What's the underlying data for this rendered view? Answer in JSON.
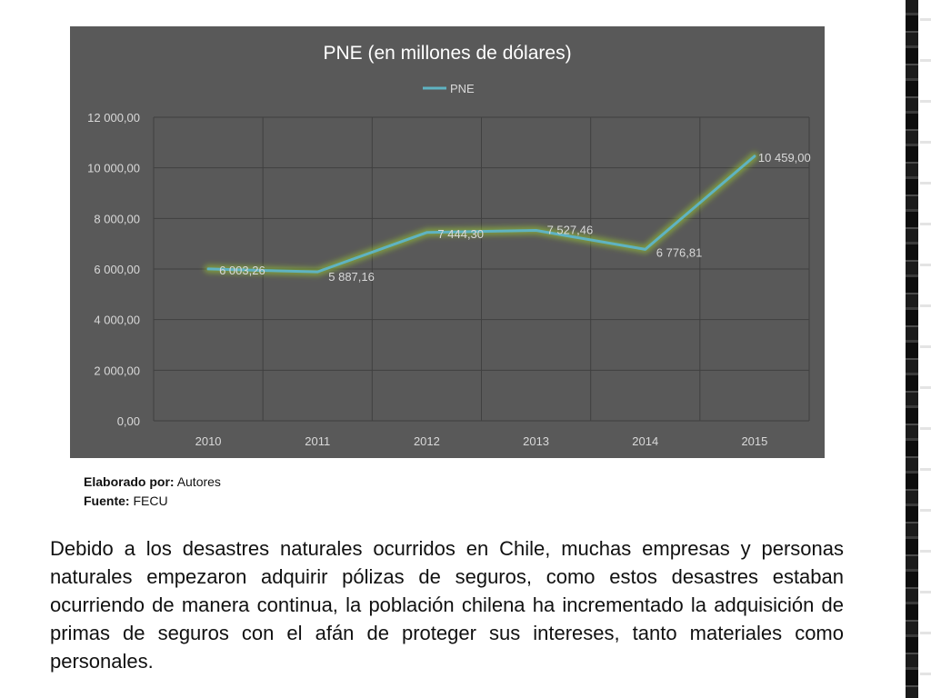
{
  "chart_data": {
    "type": "line",
    "title": "PNE (en millones de dólares)",
    "legend": {
      "position": "top",
      "entries": [
        "PNE"
      ]
    },
    "categories": [
      "2010",
      "2011",
      "2012",
      "2013",
      "2014",
      "2015"
    ],
    "series": [
      {
        "name": "PNE",
        "values": [
          6003.26,
          5887.16,
          7444.3,
          7527.46,
          6776.81,
          10459.0
        ],
        "labels": [
          "6 003,26",
          "5 887,16",
          "7 444,30",
          "7 527,46",
          "6 776,81",
          "10 459,00"
        ]
      }
    ],
    "yticks": [
      0,
      2000,
      4000,
      6000,
      8000,
      10000,
      12000
    ],
    "ytick_labels": [
      "0,00",
      "2 000,00",
      "4 000,00",
      "6 000,00",
      "8 000,00",
      "10 000,00",
      "12 000,00"
    ],
    "ylim": [
      0,
      12000
    ],
    "grid": true,
    "colors": {
      "background": "#595959",
      "line": "#5fb3c2",
      "glow": "#9acd32",
      "grid": "#404040",
      "text": "#d9d9d9"
    }
  },
  "caption": {
    "elaborado_label": "Elaborado por:",
    "elaborado_value": "Autores",
    "fuente_label": "Fuente:",
    "fuente_value": "FECU"
  },
  "paragraph": "Debido a los desastres naturales ocurridos en Chile, muchas empresas y personas naturales empezaron adquirir pólizas de seguros, como estos desastres estaban ocurriendo de manera continua, la población chilena ha incrementado la adquisición de primas de seguros con el afán de proteger sus intereses, tanto materiales como personales."
}
